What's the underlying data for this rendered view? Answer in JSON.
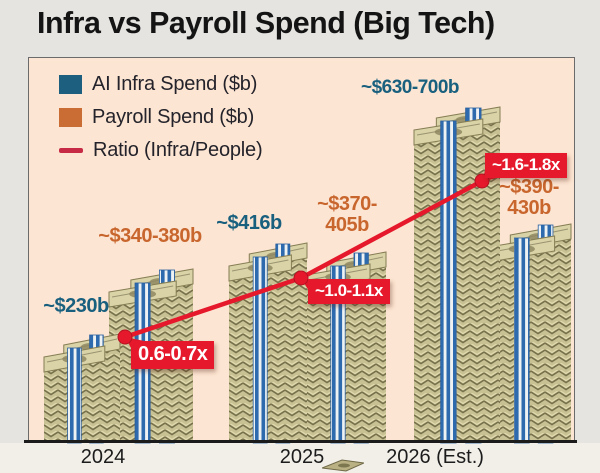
{
  "title": "Infra vs Payroll Spend (Big Tech)",
  "colors": {
    "infra": "#19607f",
    "payroll": "#c8662e",
    "ratio_line": "#e5192b",
    "legend_dash": "#c62a45",
    "chart_background": "#fce5d2",
    "page_background": "#e5e4e1",
    "axis": "#1b1b1b"
  },
  "legend": {
    "items": [
      {
        "label": "AI Infra Spend ($b)",
        "swatch": "blue-square"
      },
      {
        "label": "Payroll Spend ($b)",
        "swatch": "orange-square"
      },
      {
        "label": "Ratio (Infra/People)",
        "swatch": "red-dash"
      }
    ]
  },
  "chart_data": {
    "type": "bar",
    "subtype": "pictorial money-stack bars with ratio line overlay",
    "categories": [
      "2024",
      "2025",
      "2026 (Est.)"
    ],
    "series": [
      {
        "name": "AI Infra Spend ($b)",
        "kind": "bar",
        "color": "#19607f",
        "values": [
          230,
          416,
          665
        ],
        "value_labels": [
          [
            "~$230b"
          ],
          [
            "~$416b"
          ],
          [
            "~$630-700b"
          ]
        ]
      },
      {
        "name": "Payroll Spend ($b)",
        "kind": "bar",
        "color": "#c8662e",
        "values": [
          360,
          388,
          410
        ],
        "value_labels": [
          [
            "~$340-380b"
          ],
          [
            "~$370-",
            "405b"
          ],
          [
            "~$390-",
            "430b"
          ]
        ]
      },
      {
        "name": "Ratio (Infra/People)",
        "kind": "line",
        "color": "#e5192b",
        "values": [
          0.65,
          1.05,
          1.7
        ],
        "value_labels": [
          [
            "0.6-0.7x"
          ],
          [
            "~1.0-1.1x"
          ],
          [
            "~1.6-1.8x"
          ]
        ]
      }
    ],
    "legend_position": "top-left",
    "x_axis": {
      "line": true,
      "ticks": false
    }
  }
}
